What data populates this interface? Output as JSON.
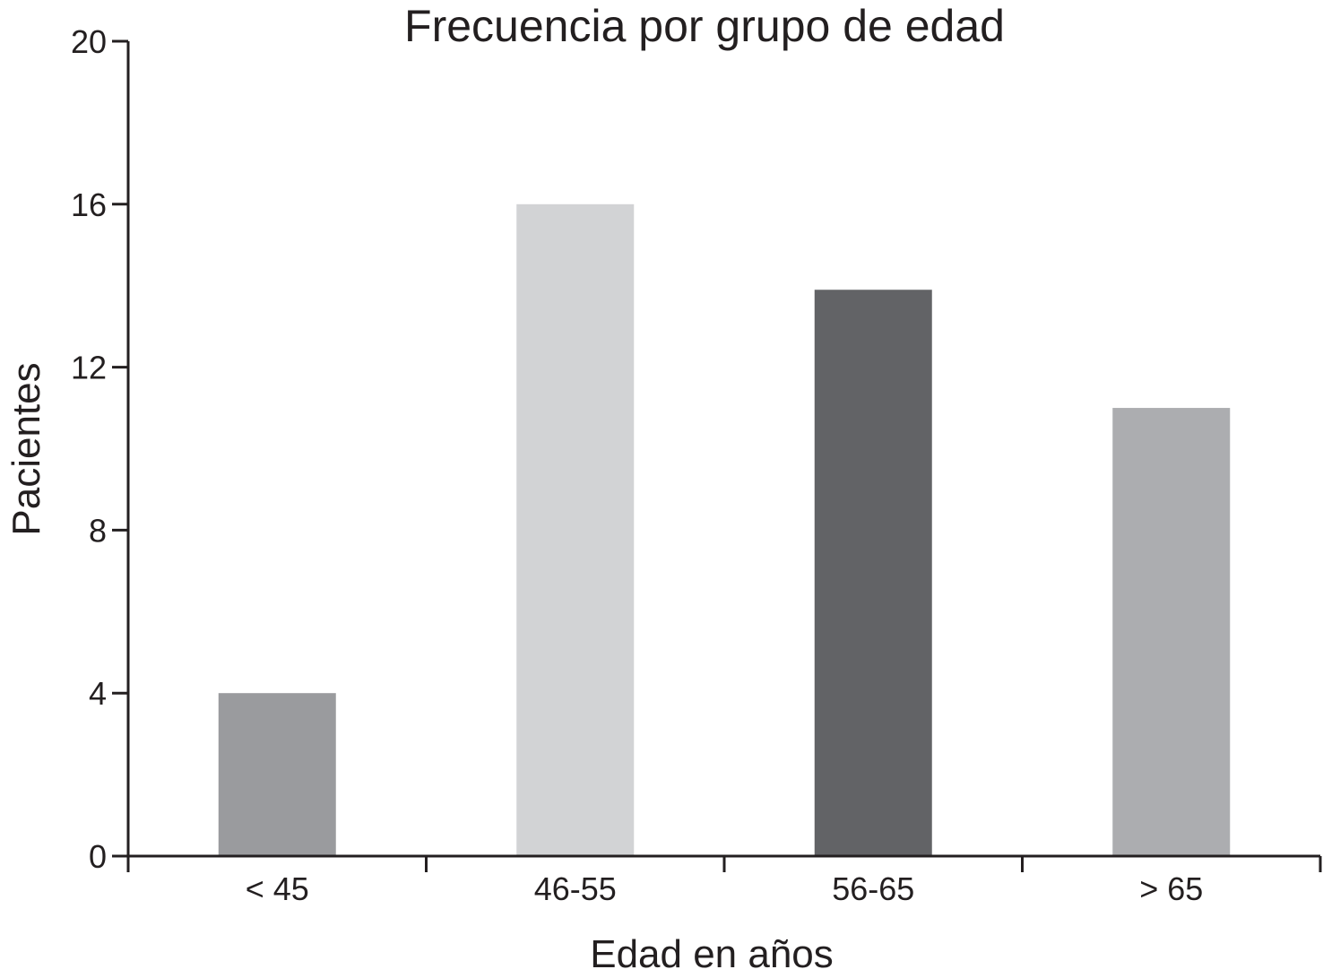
{
  "chart_data": {
    "type": "bar",
    "title": "Frecuencia por grupo de edad",
    "xlabel": "Edad en años",
    "ylabel": "Pacientes",
    "categories": [
      "< 45",
      "46-55",
      "56-65",
      "> 65"
    ],
    "values": [
      4,
      16,
      13.9,
      11
    ],
    "bar_colors": [
      "#9a9b9e",
      "#d2d3d5",
      "#626366",
      "#acadb0"
    ],
    "ylim": [
      0,
      20
    ],
    "yticks": [
      0,
      4,
      8,
      12,
      16,
      20
    ],
    "grid": false,
    "legend": "none"
  }
}
